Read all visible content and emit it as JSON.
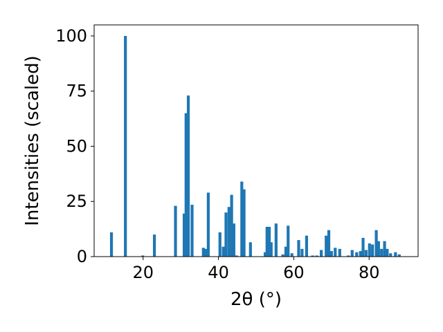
{
  "chart_data": {
    "type": "bar",
    "xlabel": "2θ (°)",
    "ylabel": "Intensities (scaled)",
    "xlim": [
      7,
      93
    ],
    "ylim": [
      0,
      105
    ],
    "xticks": [
      20,
      40,
      60,
      80
    ],
    "yticks": [
      0,
      25,
      50,
      75,
      100
    ],
    "bar_color": "#1f77b4",
    "grid": false,
    "x": [
      11.6,
      15.3,
      19.9,
      23.0,
      28.6,
      30.9,
      31.4,
      32.0,
      33.0,
      36.0,
      36.6,
      37.3,
      40.4,
      41.3,
      42.0,
      42.8,
      43.5,
      44.1,
      44.8,
      46.2,
      46.8,
      48.5,
      52.4,
      52.9,
      53.5,
      54.0,
      55.3,
      57.1,
      57.9,
      58.5,
      59.5,
      61.3,
      62.2,
      63.4,
      65.0,
      66.1,
      67.3,
      68.6,
      69.3,
      70.0,
      71.0,
      72.2,
      74.5,
      75.5,
      76.7,
      77.7,
      78.4,
      79.2,
      80.1,
      80.9,
      81.9,
      82.5,
      83.3,
      84.1,
      84.8,
      85.7,
      87.0,
      88.0
    ],
    "values": [
      11,
      100,
      0.5,
      10,
      23,
      19.5,
      65,
      73,
      23.5,
      4,
      3.5,
      29,
      11,
      4.5,
      20,
      22.5,
      28,
      15,
      0.5,
      34,
      30.5,
      6.5,
      2,
      13.5,
      13.5,
      6.5,
      15,
      1,
      4.5,
      14,
      1.5,
      7.5,
      3.5,
      9.5,
      0.5,
      0.5,
      3,
      9.5,
      12,
      2.5,
      4,
      3.5,
      0.5,
      3,
      2,
      2.5,
      8.5,
      3,
      6,
      5.5,
      12,
      7,
      3.5,
      7,
      3.5,
      1.5,
      2,
      1
    ]
  }
}
